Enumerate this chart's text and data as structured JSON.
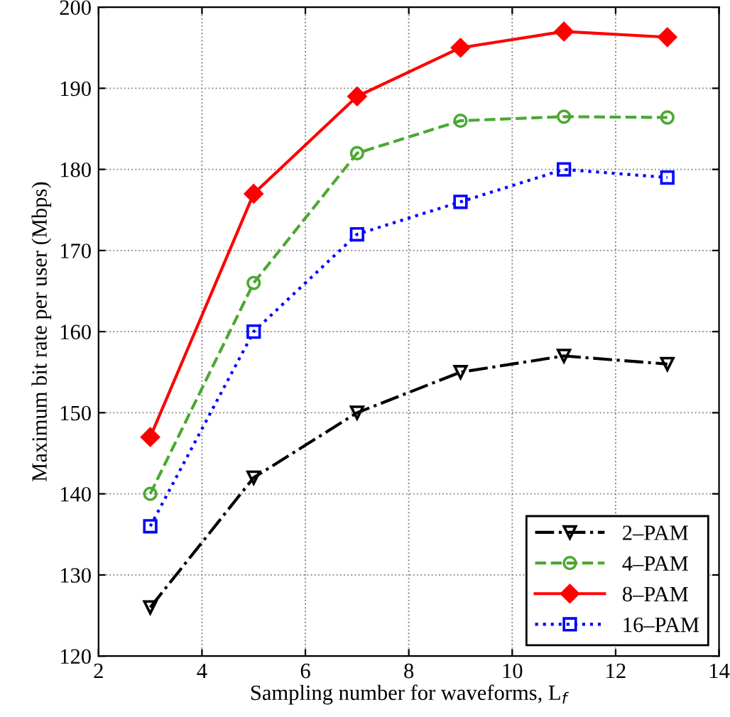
{
  "chart_data": {
    "type": "line",
    "xlabel": "Sampling number for waveforms, L$_{f}$",
    "ylabel": "Maximum bit rate per user (Mbps)",
    "x": [
      3,
      5,
      7,
      9,
      11,
      13
    ],
    "xlim": [
      2,
      14
    ],
    "xticks": [
      2,
      4,
      6,
      8,
      10,
      12,
      14
    ],
    "ylim": [
      120,
      200
    ],
    "yticks": [
      120,
      130,
      140,
      150,
      160,
      170,
      180,
      190,
      200
    ],
    "grid": true,
    "legend": "bottom right",
    "series": [
      {
        "name": "2–PAM",
        "color": "#000000",
        "values": [
          126,
          142,
          150,
          155,
          157,
          156
        ],
        "marker": "triangle",
        "line_style": "dashdot"
      },
      {
        "name": "4–PAM",
        "color": "#4ca832",
        "values": [
          140,
          166,
          182,
          186,
          186.5,
          186.4
        ],
        "marker": "circle",
        "line_style": "dashed"
      },
      {
        "name": "8–PAM",
        "color": "#ff0000",
        "values": [
          147,
          177,
          189,
          195,
          197,
          196.3
        ],
        "marker": "diamond",
        "line_style": "solid"
      },
      {
        "name": "16–PAM",
        "color": "#0000ff",
        "values": [
          136,
          160,
          172,
          176,
          180,
          179
        ],
        "marker": "square",
        "line_style": "dotted"
      }
    ]
  }
}
